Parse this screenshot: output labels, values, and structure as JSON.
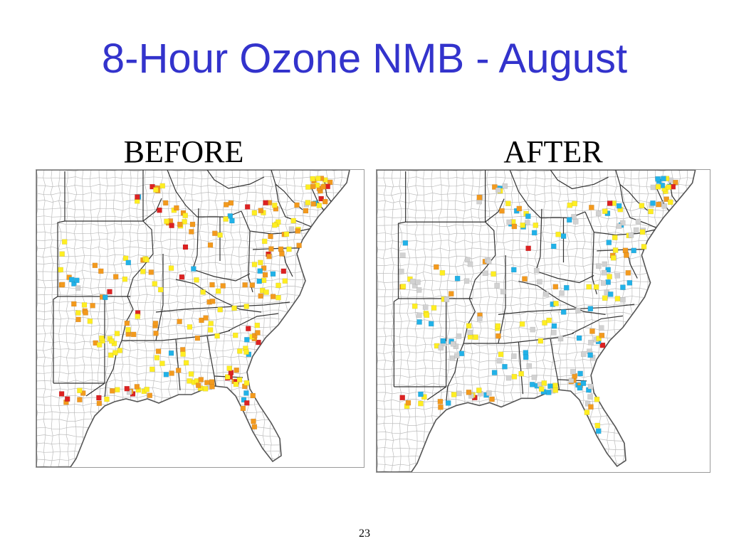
{
  "slide": {
    "title": "8-Hour Ozone NMB - August",
    "page_number": "23"
  },
  "panels": [
    {
      "id": "before",
      "label": "BEFORE"
    },
    {
      "id": "after",
      "label": "AFTER"
    }
  ],
  "colors": {
    "background": "#ffffff",
    "title": "#3333cc",
    "county_lines": "#bdbdbd",
    "state_lines": "#333333",
    "markers": {
      "red": "#dd2222",
      "orange": "#f39a1e",
      "yellow": "#ffee22",
      "cyan": "#22b2e8",
      "gray": "#d2d2d2"
    }
  },
  "legend_note": "",
  "marker_mix": {
    "before": {
      "red": 0.12,
      "orange": 0.4,
      "yellow": 0.4,
      "cyan": 0.05,
      "gray": 0.03
    },
    "after": {
      "red": 0.03,
      "orange": 0.12,
      "yellow": 0.3,
      "cyan": 0.22,
      "gray": 0.33
    }
  }
}
